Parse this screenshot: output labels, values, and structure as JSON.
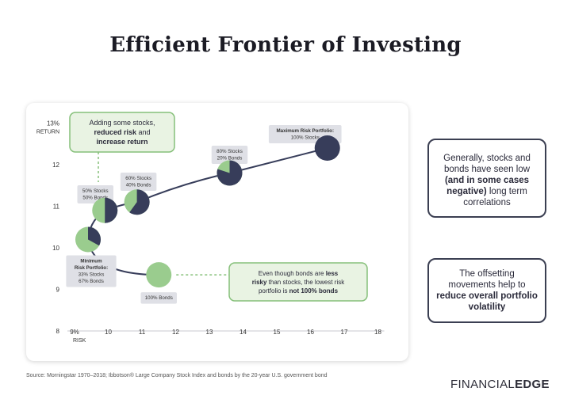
{
  "title": "Efficient Frontier of Investing",
  "colors": {
    "stock": "#373d5a",
    "bond": "#9acc8e",
    "annot_fill": "#e9f3e3",
    "annot_border": "#86c07a",
    "label_bg": "#dfe0e6"
  },
  "chart_data": {
    "type": "line",
    "xlabel": "RISK",
    "ylabel": "RETURN",
    "x_unit": "%",
    "y_unit": "%",
    "xlim": [
      8,
      18
    ],
    "ylim": [
      8,
      13
    ],
    "x_ticks": [
      "9%",
      "10",
      "11",
      "12",
      "13",
      "14",
      "15",
      "16",
      "17",
      "18"
    ],
    "y_ticks": [
      "8",
      "9",
      "10",
      "11",
      "12",
      "13%"
    ],
    "x_tick_values": [
      9,
      10,
      11,
      12,
      13,
      14,
      15,
      16,
      17,
      18
    ],
    "y_tick_values": [
      8,
      9,
      10,
      11,
      12,
      13
    ],
    "points": [
      {
        "x": 11.5,
        "y": 9.35,
        "stock_pct": 0,
        "label": [
          "100% Bonds"
        ]
      },
      {
        "x": 9.4,
        "y": 10.2,
        "stock_pct": 33,
        "label": [
          "Minimum",
          "Risk Portfolio:",
          "33% Stocks",
          "67% Bonds"
        ]
      },
      {
        "x": 9.9,
        "y": 10.9,
        "stock_pct": 50,
        "label": [
          "50% Stocks",
          "50% Bonds"
        ]
      },
      {
        "x": 10.85,
        "y": 11.1,
        "stock_pct": 60,
        "label": [
          "60% Stocks",
          "40% Bonds"
        ]
      },
      {
        "x": 13.6,
        "y": 11.8,
        "stock_pct": 80,
        "label": [
          "80% Stocks",
          "20% Bonds"
        ]
      },
      {
        "x": 16.5,
        "y": 12.4,
        "stock_pct": 100,
        "label": [
          "Maximum Risk Portfolio:",
          "100% Stocks"
        ]
      }
    ],
    "annotations": [
      {
        "text": [
          "Adding some stocks,",
          "reduced risk and",
          "increase return"
        ],
        "bold": [
          "reduced risk",
          "increase return"
        ]
      },
      {
        "text": [
          "Even though bonds are less",
          "risky than stocks, the lowest risk",
          "portfolio is not 100% bonds"
        ],
        "bold": [
          "less",
          "risky",
          "not 100% bonds"
        ]
      }
    ]
  },
  "notes": {
    "n1": {
      "pre": "Generally, stocks and bonds have seen low ",
      "bold": "(and in some cases negative)",
      "post": " long term correlations"
    },
    "n2": {
      "pre": "The offsetting movements help to ",
      "bold": "reduce overall portfolio volatility"
    }
  },
  "source": "Source: Morningstar 1970–2018; Ibbotson® Large Company Stock Index and bonds by the 20-year U.S. government bond",
  "brand": {
    "part1": "FINANCIAL",
    "part2": "EDGE"
  }
}
